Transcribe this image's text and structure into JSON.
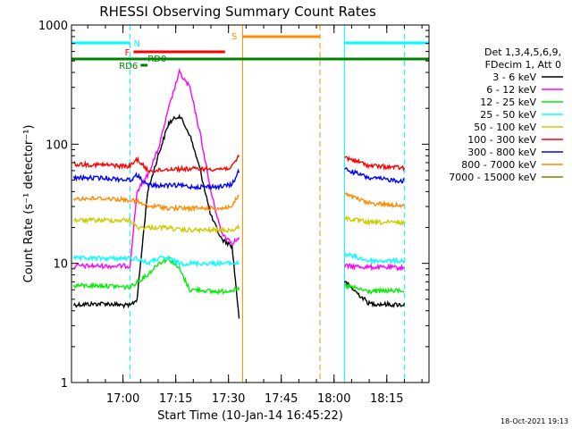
{
  "chart_data": {
    "type": "line",
    "title": "RHESSI Observing Summary Count Rates",
    "xlabel": "Start Time (10-Jan-14 16:45:22)",
    "ylabel": "Count Rate (s⁻¹ detector⁻¹)",
    "yscale": "log",
    "xlim": [
      "16:45:22",
      "18:27:00"
    ],
    "ylim": [
      1,
      1000
    ],
    "x_ticks": [
      "17:00",
      "17:15",
      "17:30",
      "17:45",
      "18:00",
      "18:15"
    ],
    "y_ticks": [
      "1",
      "10",
      "100",
      "1000"
    ],
    "legend": {
      "header": [
        "Det 1,3,4,5,6,9,",
        "FDecim 1, Att 0"
      ],
      "placement": "right"
    },
    "footer_timestamp": "18-Oct-2021 19:13",
    "series": [
      {
        "name": "3 - 6 keV",
        "color": "#000000",
        "x": [
          "16:46",
          "16:55",
          "17:02",
          "17:04",
          "17:07",
          "17:10",
          "17:13",
          "17:16",
          "17:19",
          "17:22",
          "17:25",
          "17:28",
          "17:31",
          "17:33",
          "18:03",
          "18:10",
          "18:17",
          "18:20"
        ],
        "y": [
          4.5,
          4.6,
          4.4,
          5,
          40,
          80,
          150,
          175,
          120,
          60,
          25,
          16,
          14,
          3.5,
          7,
          4.6,
          4.5,
          4.5
        ]
      },
      {
        "name": "6 - 12 keV",
        "color": "#ff00ff",
        "x": [
          "16:46",
          "16:55",
          "17:02",
          "17:04",
          "17:07",
          "17:10",
          "17:13",
          "17:16",
          "17:19",
          "17:22",
          "17:25",
          "17:28",
          "17:31",
          "17:33",
          "18:03",
          "18:10",
          "18:17",
          "18:20"
        ],
        "y": [
          9.5,
          9.5,
          9.5,
          40,
          55,
          90,
          200,
          400,
          300,
          120,
          40,
          18,
          15,
          16,
          9.5,
          9.3,
          9.2,
          9.2
        ]
      },
      {
        "name": "12 - 25 keV",
        "color": "#00ee00",
        "x": [
          "16:46",
          "16:55",
          "17:02",
          "17:04",
          "17:07",
          "17:10",
          "17:13",
          "17:16",
          "17:19",
          "17:22",
          "17:25",
          "17:28",
          "17:31",
          "17:33",
          "18:03",
          "18:10",
          "18:17",
          "18:20"
        ],
        "y": [
          6.5,
          6.5,
          6.3,
          7,
          8,
          10,
          11,
          9,
          6,
          6,
          5.8,
          5.8,
          6,
          6,
          6.5,
          5.8,
          5.9,
          5.9
        ]
      },
      {
        "name": "25 - 50 keV",
        "color": "#00ffff",
        "x": [
          "16:46",
          "16:55",
          "17:02",
          "17:04",
          "17:07",
          "17:10",
          "17:13",
          "17:16",
          "17:19",
          "17:22",
          "17:25",
          "17:28",
          "17:31",
          "17:33",
          "18:03",
          "18:10",
          "18:17",
          "18:20"
        ],
        "y": [
          11,
          11,
          11,
          11,
          10,
          11,
          11,
          10,
          10,
          10,
          10,
          10,
          10,
          10,
          12,
          10.5,
          10.5,
          10.5
        ]
      },
      {
        "name": "50 - 100 keV",
        "color": "#cccc00",
        "x": [
          "16:46",
          "16:55",
          "17:02",
          "17:04",
          "17:07",
          "17:10",
          "17:13",
          "17:16",
          "17:19",
          "17:22",
          "17:25",
          "17:28",
          "17:31",
          "17:33",
          "18:03",
          "18:10",
          "18:17",
          "18:20"
        ],
        "y": [
          23,
          23,
          23,
          20,
          20,
          20,
          20,
          19,
          19,
          19,
          19,
          19,
          19,
          20,
          24,
          22,
          22,
          22
        ]
      },
      {
        "name": "100 - 300 keV",
        "color": "#ff0000",
        "x": [
          "16:46",
          "16:55",
          "17:02",
          "17:04",
          "17:07",
          "17:10",
          "17:13",
          "17:16",
          "17:19",
          "17:22",
          "17:25",
          "17:28",
          "17:31",
          "17:33",
          "18:03",
          "18:10",
          "18:17",
          "18:20"
        ],
        "y": [
          68,
          67,
          65,
          75,
          60,
          60,
          62,
          62,
          62,
          62,
          62,
          62,
          64,
          80,
          78,
          66,
          64,
          63
        ]
      },
      {
        "name": "300 - 800 keV",
        "color": "#0000ff",
        "x": [
          "16:46",
          "16:55",
          "17:02",
          "17:04",
          "17:07",
          "17:10",
          "17:13",
          "17:16",
          "17:19",
          "17:22",
          "17:25",
          "17:28",
          "17:31",
          "17:33",
          "18:03",
          "18:10",
          "18:17",
          "18:20"
        ],
        "y": [
          52,
          52,
          50,
          55,
          45,
          45,
          45,
          45,
          44,
          44,
          44,
          44,
          46,
          60,
          62,
          52,
          50,
          49
        ]
      },
      {
        "name": "800 - 7000 keV",
        "color": "#ff8c00",
        "x": [
          "16:46",
          "16:55",
          "17:02",
          "17:04",
          "17:07",
          "17:10",
          "17:13",
          "17:16",
          "17:19",
          "17:22",
          "17:25",
          "17:28",
          "17:31",
          "17:33",
          "18:03",
          "18:10",
          "18:17",
          "18:20"
        ],
        "y": [
          35,
          35,
          34,
          33,
          30,
          30,
          29,
          29,
          29,
          29,
          29,
          29,
          30,
          38,
          38,
          32,
          31,
          31
        ]
      },
      {
        "name": "7000 - 15000 keV",
        "color": "#808000",
        "x": [],
        "y": []
      }
    ],
    "flag_bars": [
      {
        "label": "N",
        "color": "#00ffff",
        "segments": [
          [
            "16:45:22",
            "17:02"
          ],
          [
            "18:03",
            "18:27"
          ]
        ]
      },
      {
        "label": "F",
        "color": "#ff0000",
        "segments": [
          [
            "17:03",
            "17:29"
          ]
        ]
      },
      {
        "label": "RD0",
        "color": "#008000",
        "segments": [
          [
            "16:45:22",
            "18:27"
          ]
        ]
      },
      {
        "label": "RD6",
        "color": "#008000",
        "segments": [
          [
            "17:05",
            "17:07"
          ]
        ]
      },
      {
        "label": "S",
        "color": "#ff8c00",
        "segments": [
          [
            "17:34",
            "17:56"
          ]
        ]
      }
    ],
    "vertical_markers": [
      {
        "time": "16:45:22",
        "color": "#00ffff",
        "style": "solid"
      },
      {
        "time": "17:02",
        "color": "#00ffff",
        "style": "dashed"
      },
      {
        "time": "17:34",
        "color": "#ff8c00",
        "style": "solid"
      },
      {
        "time": "17:56",
        "color": "#ff8c00",
        "style": "dashed"
      },
      {
        "time": "18:03",
        "color": "#00ffff",
        "style": "solid"
      },
      {
        "time": "18:20",
        "color": "#00ffff",
        "style": "dashed"
      }
    ]
  }
}
